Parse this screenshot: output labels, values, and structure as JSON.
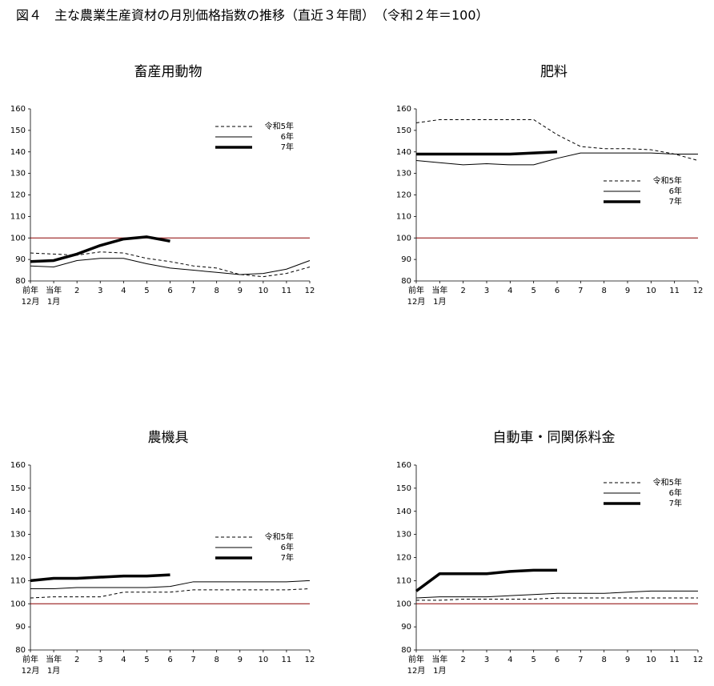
{
  "title": "図４　主な農業生産資材の月別価格指数の推移（直近３年間）　（令和２年＝100）",
  "chart_data": [
    {
      "type": "line",
      "title": "畜産用動物",
      "categories": [
        "前年12月",
        "当年1月",
        "2",
        "3",
        "4",
        "5",
        "6",
        "7",
        "8",
        "9",
        "10",
        "11",
        "12"
      ],
      "ylim": [
        80,
        160
      ],
      "yticks": [
        80,
        90,
        100,
        110,
        120,
        130,
        140,
        150,
        160
      ],
      "reference_line": 100,
      "reference_color": "#8b0000",
      "legend": "upper right",
      "series": [
        {
          "name": "令和5年",
          "color": "#000000",
          "dash": true,
          "width": 1,
          "values": [
            93,
            92.5,
            92,
            93.5,
            93,
            90.5,
            89,
            87,
            86,
            83,
            82,
            83.5,
            86.5
          ]
        },
        {
          "name": "6年",
          "color": "#000000",
          "dash": false,
          "width": 1,
          "values": [
            87,
            86.5,
            89.5,
            90.5,
            90.5,
            88,
            86,
            85,
            84,
            83,
            83.5,
            85.5,
            89.5
          ]
        },
        {
          "name": "7年",
          "color": "#000000",
          "dash": false,
          "width": 3.5,
          "values": [
            89,
            89.5,
            92.5,
            96.5,
            99.5,
            100.5,
            98.5,
            null,
            null,
            null,
            null,
            null,
            null
          ]
        }
      ]
    },
    {
      "type": "line",
      "title": "肥料",
      "categories": [
        "前年12月",
        "当年1月",
        "2",
        "3",
        "4",
        "5",
        "6",
        "7",
        "8",
        "9",
        "10",
        "11",
        "12"
      ],
      "ylim": [
        80,
        160
      ],
      "yticks": [
        80,
        90,
        100,
        110,
        120,
        130,
        140,
        150,
        160
      ],
      "reference_line": 100,
      "reference_color": "#8b0000",
      "legend": "center right",
      "series": [
        {
          "name": "令和5年",
          "color": "#000000",
          "dash": true,
          "width": 1,
          "values": [
            153.5,
            155,
            155,
            155,
            155,
            155,
            148,
            142.5,
            141.5,
            141.5,
            141,
            139,
            136
          ]
        },
        {
          "name": "6年",
          "color": "#000000",
          "dash": false,
          "width": 1,
          "values": [
            136,
            135,
            134,
            134.5,
            134,
            134,
            137,
            139.5,
            139.5,
            139.5,
            139.5,
            139,
            139
          ]
        },
        {
          "name": "7年",
          "color": "#000000",
          "dash": false,
          "width": 3.5,
          "values": [
            139,
            139,
            139,
            139,
            139,
            139.5,
            140,
            null,
            null,
            null,
            null,
            null,
            null
          ]
        }
      ]
    },
    {
      "type": "line",
      "title": "農機具",
      "categories": [
        "前年12月",
        "当年1月",
        "2",
        "3",
        "4",
        "5",
        "6",
        "7",
        "8",
        "9",
        "10",
        "11",
        "12"
      ],
      "ylim": [
        80,
        160
      ],
      "yticks": [
        80,
        90,
        100,
        110,
        120,
        130,
        140,
        150,
        160
      ],
      "reference_line": 100,
      "reference_color": "#8b0000",
      "legend": "center right",
      "series": [
        {
          "name": "令和5年",
          "color": "#000000",
          "dash": true,
          "width": 1,
          "values": [
            102.5,
            103,
            103,
            103,
            105,
            105,
            105,
            106,
            106,
            106,
            106,
            106,
            106.5
          ]
        },
        {
          "name": "6年",
          "color": "#000000",
          "dash": false,
          "width": 1,
          "values": [
            106.5,
            106.5,
            107,
            107,
            107,
            107,
            107.5,
            109.5,
            109.5,
            109.5,
            109.5,
            109.5,
            110
          ]
        },
        {
          "name": "7年",
          "color": "#000000",
          "dash": false,
          "width": 3.5,
          "values": [
            110,
            111,
            111,
            111.5,
            112,
            112,
            112.5,
            null,
            null,
            null,
            null,
            null,
            null
          ]
        }
      ]
    },
    {
      "type": "line",
      "title": "自動車・同関係料金",
      "categories": [
        "前年12月",
        "当年1月",
        "2",
        "3",
        "4",
        "5",
        "6",
        "7",
        "8",
        "9",
        "10",
        "11",
        "12"
      ],
      "ylim": [
        80,
        160
      ],
      "yticks": [
        80,
        90,
        100,
        110,
        120,
        130,
        140,
        150,
        160
      ],
      "reference_line": 100,
      "reference_color": "#8b0000",
      "legend": "upper right",
      "series": [
        {
          "name": "令和5年",
          "color": "#000000",
          "dash": true,
          "width": 1,
          "values": [
            101.5,
            101.5,
            102,
            102,
            102,
            102,
            102.5,
            102.5,
            102.5,
            102.5,
            102.5,
            102.5,
            102.5
          ]
        },
        {
          "name": "6年",
          "color": "#000000",
          "dash": false,
          "width": 1,
          "values": [
            102.5,
            103,
            103,
            103,
            103.5,
            104,
            104.5,
            104.5,
            104.5,
            105,
            105.5,
            105.5,
            105.5
          ]
        },
        {
          "name": "7年",
          "color": "#000000",
          "dash": false,
          "width": 3.5,
          "values": [
            105.5,
            113,
            113,
            113,
            114,
            114.5,
            114.5,
            null,
            null,
            null,
            null,
            null,
            null
          ]
        }
      ]
    }
  ]
}
